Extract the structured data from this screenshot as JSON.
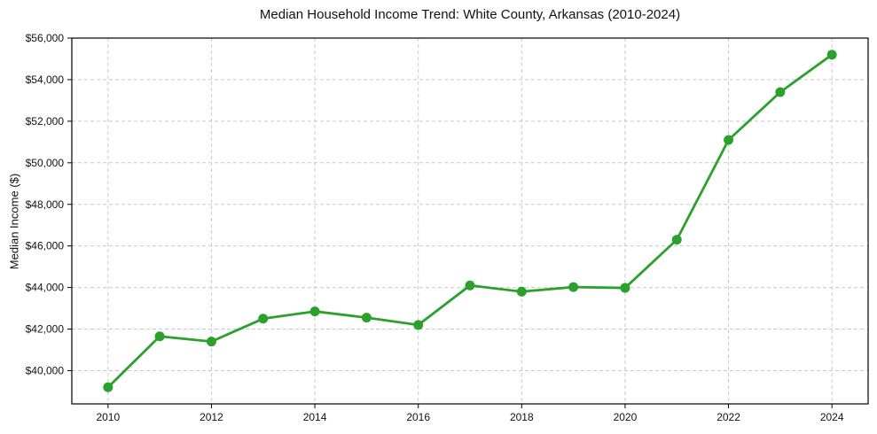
{
  "chart_data": {
    "type": "line",
    "title": "Median Household Income Trend: White County, Arkansas (2010-2024)",
    "ylabel": "Median Income ($)",
    "xlabel": "",
    "series": [
      {
        "name": "Median Household Income",
        "x": [
          2010,
          2011,
          2012,
          2013,
          2014,
          2015,
          2016,
          2017,
          2018,
          2019,
          2020,
          2021,
          2022,
          2023,
          2024
        ],
        "values": [
          39200,
          41650,
          41400,
          42500,
          42850,
          42550,
          42200,
          44100,
          43800,
          44020,
          43980,
          46300,
          51100,
          53400,
          55200
        ]
      }
    ],
    "xlim": [
      2009.3,
      2024.7
    ],
    "ylim": [
      38400,
      56000
    ],
    "xticks": {
      "values": [
        2010,
        2012,
        2014,
        2016,
        2018,
        2020,
        2022,
        2024
      ],
      "labels": [
        "2010",
        "2012",
        "2014",
        "2016",
        "2018",
        "2020",
        "2022",
        "2024"
      ]
    },
    "yticks": {
      "values": [
        40000,
        42000,
        44000,
        46000,
        48000,
        50000,
        52000,
        54000,
        56000
      ],
      "labels": [
        "$40,000",
        "$42,000",
        "$44,000",
        "$46,000",
        "$48,000",
        "$50,000",
        "$52,000",
        "$54,000",
        "$56,000"
      ]
    },
    "grid": true,
    "legend_position": "none",
    "colors": {
      "line": "#2ca02c",
      "marker": "#2ca02c",
      "grid": "#c9c9c9",
      "axis": "#000000",
      "plot_background": "#ffffff",
      "figure_background": "#ffffff"
    },
    "marker_style": "circle"
  }
}
